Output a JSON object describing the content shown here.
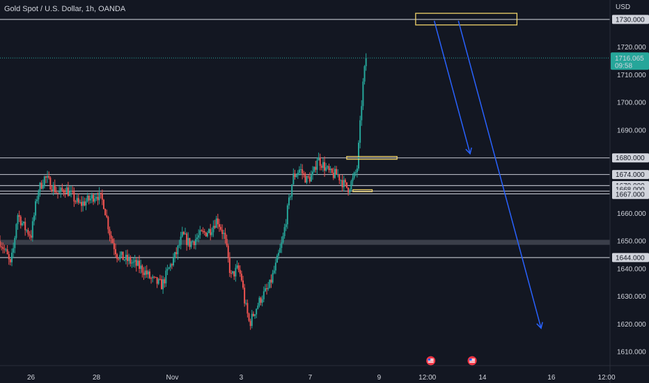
{
  "chart_data": {
    "type": "candlestick",
    "title": "Gold Spot / U.S. Dollar, 1h, OANDA",
    "currency": "USD",
    "ylim": [
      1605,
      1737
    ],
    "y_ticks": [
      1610,
      1620,
      1630,
      1640,
      1650,
      1660,
      1670,
      1680,
      1690,
      1700,
      1710,
      1720,
      1730
    ],
    "y_tick_labels": [
      "1610.000",
      "1620.000",
      "1630.000",
      "1640.000",
      "1650.000",
      "1660.000",
      "1670.000",
      "1680.000",
      "1690.000",
      "1700.000",
      "1710.000",
      "1720.000",
      "1730.000"
    ],
    "x_ticks": [
      {
        "label": "26",
        "x": 0.45
      },
      {
        "label": "28",
        "x": 1.4
      },
      {
        "label": "Nov",
        "x": 2.5
      },
      {
        "label": "3",
        "x": 3.5
      },
      {
        "label": "7",
        "x": 4.5
      },
      {
        "label": "9",
        "x": 5.5
      },
      {
        "label": "12:00",
        "x": 6.2
      },
      {
        "label": "14",
        "x": 7.0
      },
      {
        "label": "16",
        "x": 8.0
      },
      {
        "label": "12:00",
        "x": 8.8
      }
    ],
    "xlim": [
      0,
      8.85
    ],
    "price_path": [
      [
        0,
        1650
      ],
      [
        0.1,
        1645
      ],
      [
        0.15,
        1641
      ],
      [
        0.2,
        1648
      ],
      [
        0.25,
        1660
      ],
      [
        0.35,
        1655
      ],
      [
        0.45,
        1652
      ],
      [
        0.55,
        1668
      ],
      [
        0.65,
        1673
      ],
      [
        0.75,
        1670
      ],
      [
        0.85,
        1667
      ],
      [
        0.95,
        1669
      ],
      [
        1.05,
        1666
      ],
      [
        1.15,
        1663
      ],
      [
        1.3,
        1665
      ],
      [
        1.4,
        1667
      ],
      [
        1.5,
        1664
      ],
      [
        1.6,
        1652
      ],
      [
        1.7,
        1645
      ],
      [
        1.85,
        1643
      ],
      [
        2.0,
        1641
      ],
      [
        2.1,
        1639
      ],
      [
        2.2,
        1636
      ],
      [
        2.35,
        1634
      ],
      [
        2.45,
        1640
      ],
      [
        2.55,
        1645
      ],
      [
        2.65,
        1652
      ],
      [
        2.75,
        1649
      ],
      [
        2.9,
        1652
      ],
      [
        3.05,
        1654
      ],
      [
        3.15,
        1658
      ],
      [
        3.25,
        1652
      ],
      [
        3.3,
        1645
      ],
      [
        3.35,
        1637
      ],
      [
        3.45,
        1640
      ],
      [
        3.5,
        1637
      ],
      [
        3.55,
        1628
      ],
      [
        3.62,
        1620
      ],
      [
        3.7,
        1625
      ],
      [
        3.8,
        1630
      ],
      [
        3.9,
        1633
      ],
      [
        4.0,
        1641
      ],
      [
        4.1,
        1650
      ],
      [
        4.15,
        1658
      ],
      [
        4.2,
        1665
      ],
      [
        4.25,
        1673
      ],
      [
        4.35,
        1676
      ],
      [
        4.45,
        1672
      ],
      [
        4.55,
        1674
      ],
      [
        4.6,
        1680
      ],
      [
        4.7,
        1677
      ],
      [
        4.8,
        1674
      ],
      [
        4.9,
        1674
      ],
      [
        5.0,
        1670
      ],
      [
        5.05,
        1669
      ],
      [
        5.12,
        1672
      ],
      [
        5.18,
        1676
      ],
      [
        5.22,
        1690
      ],
      [
        5.26,
        1705
      ],
      [
        5.3,
        1714
      ],
      [
        5.33,
        1716.065
      ]
    ],
    "last_price": 1716.065,
    "last_price_label": "1716.065",
    "countdown_label": "09:58",
    "levels": [
      {
        "value": 1730,
        "label": "1730.000"
      },
      {
        "value": 1680,
        "label": "1680.000"
      },
      {
        "value": 1674,
        "label": "1674.000"
      },
      {
        "value": 1670,
        "label": "1670.000"
      },
      {
        "value": 1668,
        "label": "1668.000"
      },
      {
        "value": 1667,
        "label": "1667.000"
      },
      {
        "value": 1644,
        "label": "1644.000"
      }
    ],
    "zone": {
      "from": 1648.6,
      "to": 1650.4
    },
    "boxes": [
      {
        "x0": 6.03,
        "x1": 7.5,
        "y0": 1728,
        "y1": 1732.2
      },
      {
        "x0": 5.03,
        "x1": 5.76,
        "y0": 1679.5,
        "y1": 1680.5
      },
      {
        "x0": 5.12,
        "x1": 5.4,
        "y0": 1667.8,
        "y1": 1668.5
      }
    ],
    "arrows": [
      {
        "x0": 6.3,
        "x1": 6.82,
        "y0": 1729.5,
        "y1": 1681.5
      },
      {
        "x0": 6.65,
        "x1": 7.85,
        "y0": 1729.5,
        "y1": 1618.5
      }
    ],
    "colors": {
      "up": "#26a69a",
      "down": "#ef5350",
      "level": "#b2b5be",
      "zone": "#434651",
      "arrow": "#2962ff",
      "box": "#f0d36a",
      "price_label": "#26a69a",
      "level_label": "#d1d4dc",
      "background": "#131722",
      "scale_text": "#d1d4dc"
    },
    "grid": false,
    "event_icons": [
      {
        "x": 6.25,
        "name": "us-flag-icon"
      },
      {
        "x": 6.85,
        "name": "us-flag-icon"
      }
    ]
  }
}
